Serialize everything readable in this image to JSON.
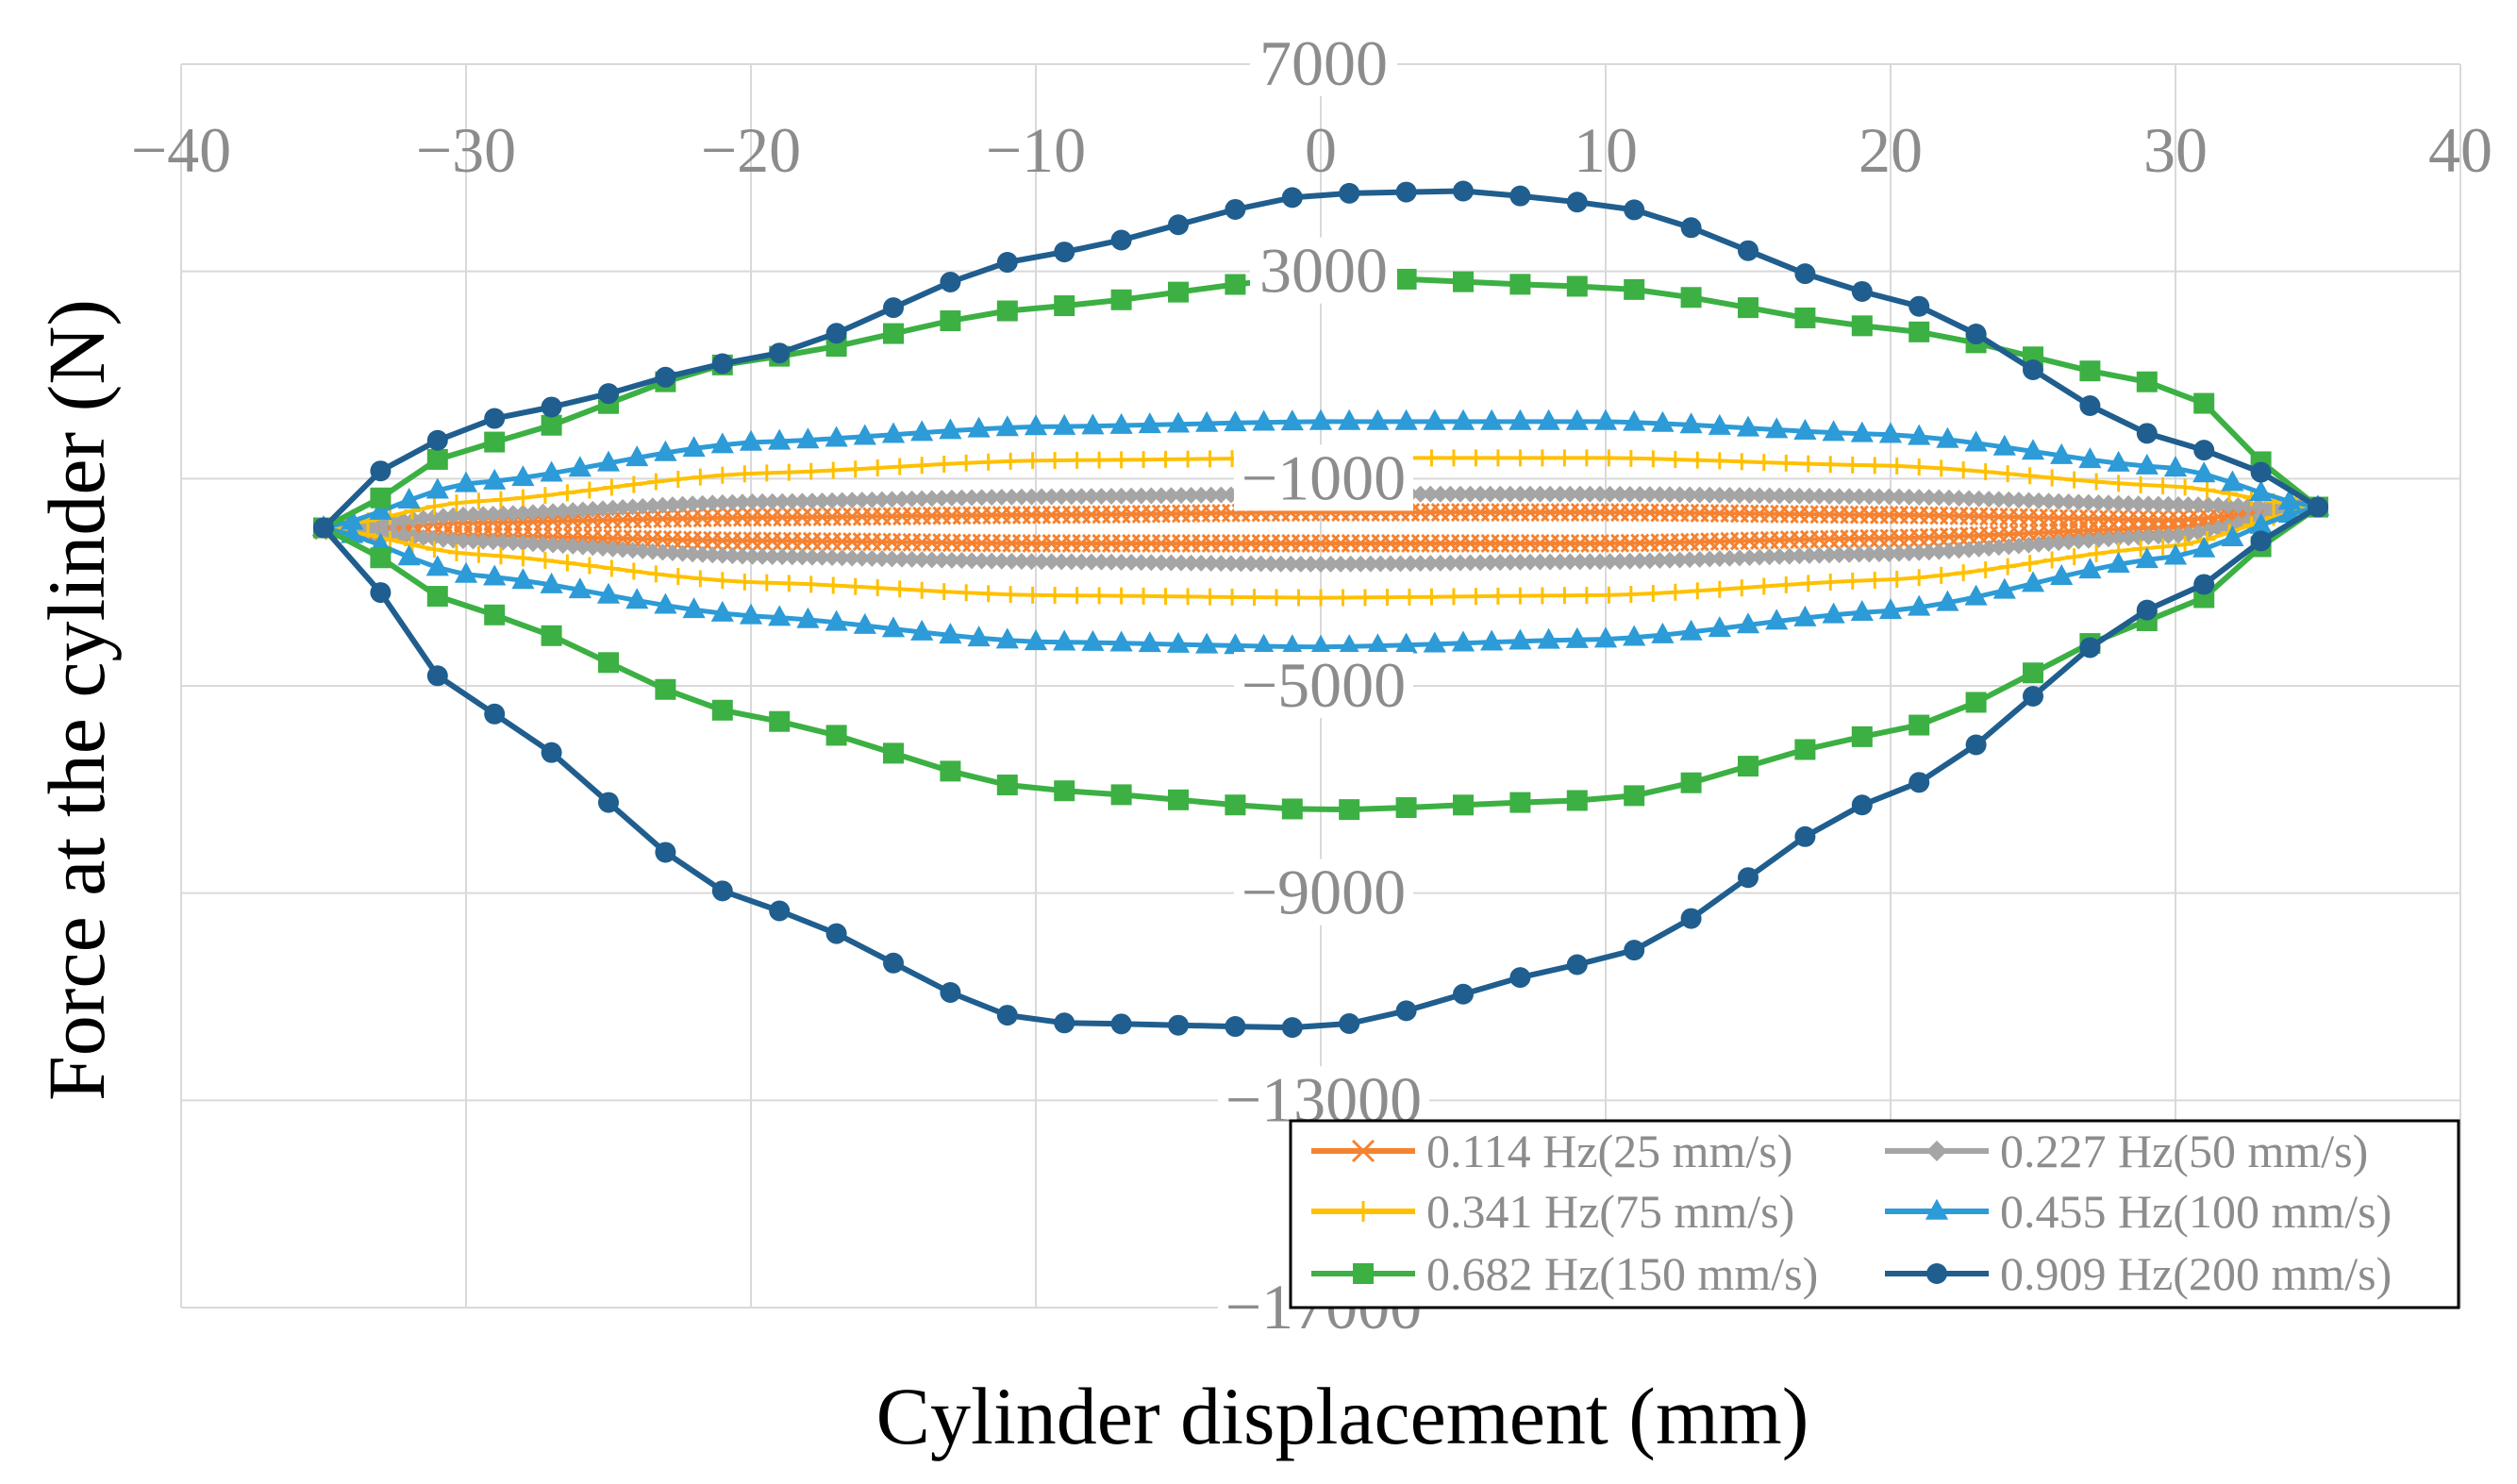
{
  "chart_data": {
    "type": "scatter",
    "title": "",
    "xlabel": "Cylinder displacement (mm)",
    "ylabel": "Force at the cylinder (N)",
    "xlim": [
      -40,
      40
    ],
    "ylim": [
      -17000,
      7000
    ],
    "x_ticks": [
      -40,
      -30,
      -20,
      -10,
      0,
      10,
      20,
      30,
      40
    ],
    "x_tick_labels": [
      "−40",
      "−30",
      "−20",
      "−10",
      "0",
      "10",
      "20",
      "30",
      "40"
    ],
    "y_ticks": [
      7000,
      3000,
      -1000,
      -5000,
      -9000,
      -13000,
      -17000
    ],
    "y_tick_labels": [
      "7000",
      "3000",
      "−1000",
      "−5000",
      "−9000",
      "−13000",
      "−17000"
    ],
    "grid": true,
    "legend_position": "bottom-right",
    "series": [
      {
        "name": "0.114 Hz(25 mm/s)",
        "color": "#f58231",
        "marker": "x",
        "marker_count": 200,
        "upper": [
          [
            -35,
            -2000
          ],
          [
            -30,
            -1850
          ],
          [
            -20,
            -1750
          ],
          [
            -10,
            -1700
          ],
          [
            0,
            -1650
          ],
          [
            10,
            -1650
          ],
          [
            20,
            -1700
          ],
          [
            30,
            -1800
          ],
          [
            35,
            -1550
          ]
        ],
        "lower": [
          [
            -35,
            -2000
          ],
          [
            -30,
            -2100
          ],
          [
            -20,
            -2200
          ],
          [
            -10,
            -2250
          ],
          [
            0,
            -2250
          ],
          [
            10,
            -2250
          ],
          [
            20,
            -2150
          ],
          [
            30,
            -1950
          ],
          [
            35,
            -1550
          ]
        ]
      },
      {
        "name": "0.227 Hz(50 mm/s)",
        "color": "#a5a5a5",
        "marker": "diamond",
        "marker_count": 200,
        "upper": [
          [
            -35,
            -1950
          ],
          [
            -30,
            -1700
          ],
          [
            -20,
            -1450
          ],
          [
            -10,
            -1350
          ],
          [
            0,
            -1300
          ],
          [
            10,
            -1300
          ],
          [
            20,
            -1350
          ],
          [
            30,
            -1500
          ],
          [
            35,
            -1550
          ]
        ],
        "lower": [
          [
            -35,
            -1950
          ],
          [
            -30,
            -2200
          ],
          [
            -20,
            -2500
          ],
          [
            -10,
            -2600
          ],
          [
            0,
            -2650
          ],
          [
            10,
            -2600
          ],
          [
            20,
            -2450
          ],
          [
            30,
            -2100
          ],
          [
            35,
            -1550
          ]
        ]
      },
      {
        "name": "0.341 Hz(75 mm/s)",
        "color": "#ffc000",
        "marker": "plus",
        "marker_count": 90,
        "upper": [
          [
            -35,
            -1950
          ],
          [
            -30,
            -1450
          ],
          [
            -20,
            -900
          ],
          [
            -10,
            -650
          ],
          [
            0,
            -600
          ],
          [
            10,
            -600
          ],
          [
            20,
            -750
          ],
          [
            30,
            -1150
          ],
          [
            35,
            -1550
          ]
        ],
        "lower": [
          [
            -35,
            -1950
          ],
          [
            -30,
            -2450
          ],
          [
            -20,
            -3000
          ],
          [
            -10,
            -3250
          ],
          [
            0,
            -3300
          ],
          [
            10,
            -3250
          ],
          [
            20,
            -2950
          ],
          [
            30,
            -2300
          ],
          [
            35,
            -1550
          ]
        ]
      },
      {
        "name": "0.455 Hz(100 mm/s)",
        "color": "#2c9bd7",
        "marker": "triangle",
        "marker_count": 70,
        "upper": [
          [
            -35,
            -1950
          ],
          [
            -30,
            -1100
          ],
          [
            -20,
            -300
          ],
          [
            -10,
            0
          ],
          [
            0,
            100
          ],
          [
            10,
            100
          ],
          [
            20,
            -150
          ],
          [
            30,
            -800
          ],
          [
            35,
            -1550
          ]
        ],
        "lower": [
          [
            -35,
            -1950
          ],
          [
            -30,
            -2850
          ],
          [
            -20,
            -3650
          ],
          [
            -10,
            -4150
          ],
          [
            0,
            -4250
          ],
          [
            10,
            -4100
          ],
          [
            20,
            -3550
          ],
          [
            30,
            -2500
          ],
          [
            35,
            -1550
          ]
        ]
      },
      {
        "name": "0.682 Hz(150 mm/s)",
        "color": "#3cb043",
        "marker": "square",
        "marker_count": 35,
        "upper": [
          [
            -35,
            -1950
          ],
          [
            -30,
            -400
          ],
          [
            -20,
            1300
          ],
          [
            -10,
            2300
          ],
          [
            0,
            2900
          ],
          [
            10,
            2700
          ],
          [
            20,
            1900
          ],
          [
            30,
            800
          ],
          [
            35,
            -1550
          ]
        ],
        "lower": [
          [
            -35,
            -1950
          ],
          [
            -30,
            -3500
          ],
          [
            -20,
            -5600
          ],
          [
            -10,
            -7000
          ],
          [
            0,
            -7400
          ],
          [
            10,
            -7200
          ],
          [
            20,
            -5900
          ],
          [
            30,
            -3600
          ],
          [
            35,
            -1550
          ]
        ]
      },
      {
        "name": "0.909 Hz(200 mm/s)",
        "color": "#1f5e8e",
        "marker": "circle",
        "marker_count": 35,
        "upper": [
          [
            -35,
            -1950
          ],
          [
            -32,
            -400
          ],
          [
            -28,
            300
          ],
          [
            -20,
            1300
          ],
          [
            -10,
            3300
          ],
          [
            0,
            4500
          ],
          [
            5,
            4550
          ],
          [
            10,
            4300
          ],
          [
            20,
            2500
          ],
          [
            30,
            -300
          ],
          [
            32,
            -600
          ],
          [
            35,
            -1550
          ]
        ],
        "lower": [
          [
            -35,
            -1950
          ],
          [
            -30,
            -5300
          ],
          [
            -20,
            -9200
          ],
          [
            -10,
            -11500
          ],
          [
            0,
            -11600
          ],
          [
            10,
            -10300
          ],
          [
            20,
            -7100
          ],
          [
            30,
            -3300
          ],
          [
            35,
            -1550
          ]
        ]
      }
    ]
  }
}
